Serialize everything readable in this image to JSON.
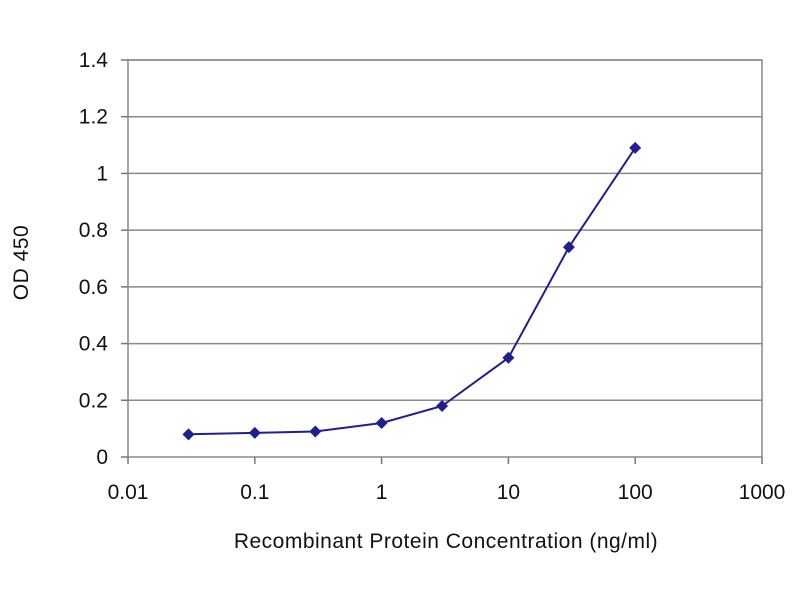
{
  "chart_data": {
    "type": "line",
    "title": "",
    "xlabel": "Recombinant Protein Concentration (ng/ml)",
    "ylabel": "OD 450",
    "x_scale": "log",
    "xlim": [
      0.01,
      1000
    ],
    "ylim": [
      0,
      1.4
    ],
    "x_ticks": [
      "0.01",
      "0.1",
      "1",
      "10",
      "100",
      "1000"
    ],
    "x_tick_values": [
      0.01,
      0.1,
      1,
      10,
      100,
      1000
    ],
    "y_ticks": [
      "0",
      "0.2",
      "0.4",
      "0.6",
      "0.8",
      "1",
      "1.2",
      "1.4"
    ],
    "y_tick_values": [
      0,
      0.2,
      0.4,
      0.6,
      0.8,
      1,
      1.2,
      1.4
    ],
    "grid": "horizontal",
    "legend": "none",
    "series": [
      {
        "color": "#1f1f8f",
        "marker": "diamond",
        "x": [
          0.03,
          0.1,
          0.3,
          1,
          3,
          10,
          30,
          100
        ],
        "y": [
          0.08,
          0.085,
          0.09,
          0.12,
          0.18,
          0.35,
          0.74,
          1.09
        ]
      }
    ]
  }
}
